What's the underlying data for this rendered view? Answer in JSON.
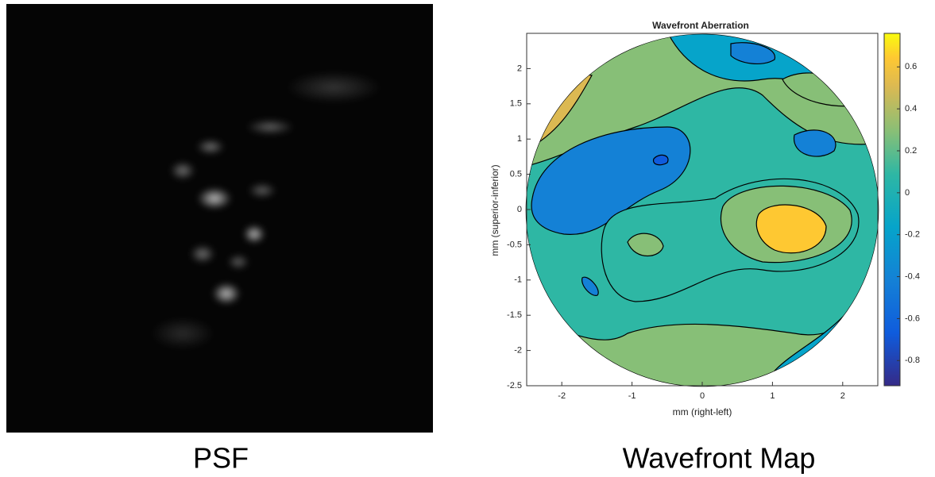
{
  "psf": {
    "caption": "PSF"
  },
  "chart_data": {
    "type": "contour",
    "title": "Wavefront Aberration",
    "xlabel": "mm (right-left)",
    "ylabel": "mm (superior-inferior)",
    "xlim": [
      -2.5,
      2.5
    ],
    "xticks": [
      -2,
      -1,
      0,
      1,
      2
    ],
    "ylim": [
      -2.5,
      2.5
    ],
    "yticks": [
      -2.5,
      -2,
      -1.5,
      -1,
      -0.5,
      0,
      0.5,
      1,
      1.5,
      2
    ],
    "colorbar": {
      "lim": [
        -0.92,
        0.76
      ],
      "ticks": [
        -0.8,
        -0.6,
        -0.4,
        -0.2,
        0,
        0.2,
        0.4,
        0.6
      ]
    },
    "caption": "Wavefront Map"
  }
}
